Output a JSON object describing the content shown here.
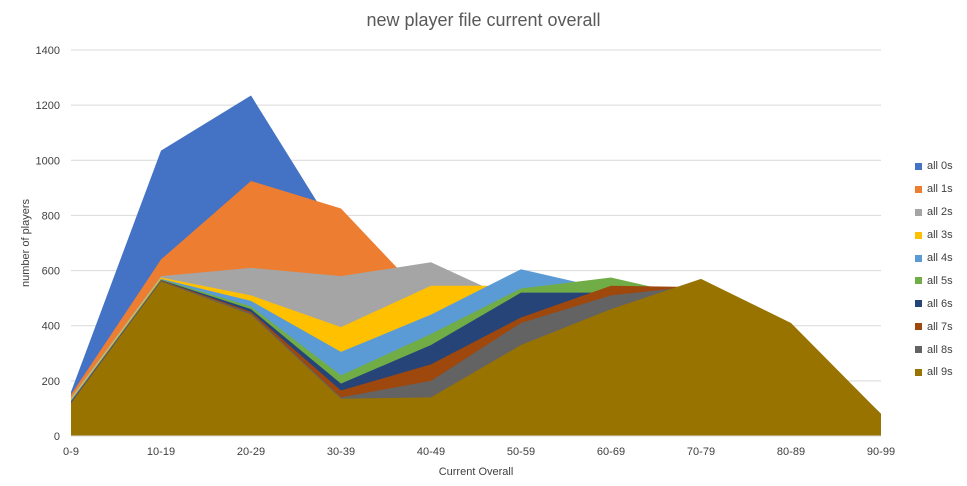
{
  "chart_data": {
    "type": "area",
    "title": "new player file current overall",
    "xlabel": "Current Overall",
    "ylabel": "number of players",
    "ylim": [
      0,
      1400
    ],
    "ytick_step": 200,
    "grid": true,
    "legend_position": "right",
    "categories": [
      "0-9",
      "10-19",
      "20-29",
      "30-39",
      "40-49",
      "50-59",
      "60-69",
      "70-79",
      "80-89",
      "90-99"
    ],
    "series": [
      {
        "name": "all 0s",
        "color": "#4472C4",
        "values": [
          160,
          1035,
          1235,
          710,
          480,
          430,
          410,
          400,
          390,
          80
        ]
      },
      {
        "name": "all 1s",
        "color": "#ED7D31",
        "values": [
          150,
          640,
          925,
          825,
          480,
          430,
          410,
          400,
          390,
          80
        ]
      },
      {
        "name": "all 2s",
        "color": "#A5A5A5",
        "values": [
          140,
          580,
          610,
          580,
          630,
          480,
          410,
          400,
          390,
          80
        ]
      },
      {
        "name": "all 3s",
        "color": "#FFC000",
        "values": [
          135,
          575,
          510,
          395,
          545,
          545,
          470,
          430,
          390,
          80
        ]
      },
      {
        "name": "all 4s",
        "color": "#5B9BD5",
        "values": [
          130,
          570,
          490,
          305,
          440,
          605,
          530,
          470,
          390,
          80
        ]
      },
      {
        "name": "all 5s",
        "color": "#70AD47",
        "values": [
          125,
          568,
          470,
          220,
          370,
          535,
          575,
          500,
          390,
          80
        ]
      },
      {
        "name": "all 6s",
        "color": "#264478",
        "values": [
          125,
          566,
          460,
          190,
          330,
          520,
          520,
          520,
          390,
          80
        ]
      },
      {
        "name": "all 7s",
        "color": "#9E480E",
        "values": [
          122,
          565,
          450,
          165,
          260,
          430,
          545,
          540,
          400,
          80
        ]
      },
      {
        "name": "all 8s",
        "color": "#636363",
        "values": [
          120,
          563,
          445,
          140,
          200,
          410,
          510,
          545,
          405,
          80
        ]
      },
      {
        "name": "all 9s",
        "color": "#997300",
        "values": [
          118,
          560,
          440,
          135,
          140,
          330,
          460,
          570,
          410,
          80
        ]
      }
    ]
  }
}
